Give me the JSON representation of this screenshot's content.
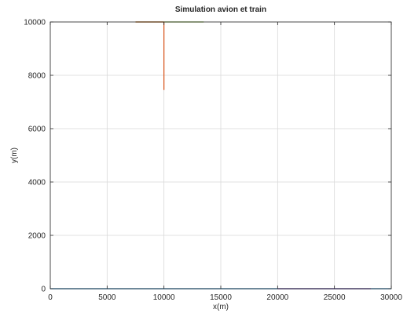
{
  "chart_data": {
    "type": "line",
    "title": "Simulation avion et train",
    "xlabel": "x(m)",
    "ylabel": "y(m)",
    "xlim": [
      0,
      30000
    ],
    "ylim": [
      0,
      10000
    ],
    "x_ticks": [
      0,
      5000,
      10000,
      15000,
      20000,
      25000,
      30000
    ],
    "y_ticks": [
      0,
      2000,
      4000,
      6000,
      8000,
      10000
    ],
    "x_tick_labels": [
      "0",
      "5000",
      "10000",
      "15000",
      "20000",
      "25000",
      "30000"
    ],
    "y_tick_labels": [
      "0",
      "2000",
      "4000",
      "6000",
      "8000",
      "10000"
    ],
    "grid": true,
    "legend": "none",
    "series": [
      {
        "color": "#77ac30",
        "x": [
          7500,
          13500
        ],
        "y": [
          10000,
          10000
        ]
      },
      {
        "color": "#d95319",
        "x": [
          7500,
          10000
        ],
        "y": [
          10000,
          10000
        ]
      },
      {
        "color": "#d95319",
        "x": [
          10000,
          10000
        ],
        "y": [
          10000,
          7450
        ]
      },
      {
        "color": "#0072bd",
        "x": [
          0,
          30000
        ],
        "y": [
          0,
          0
        ]
      },
      {
        "color": "#7e2f8e",
        "x": [
          20000,
          28200
        ],
        "y": [
          0,
          0
        ]
      }
    ]
  }
}
